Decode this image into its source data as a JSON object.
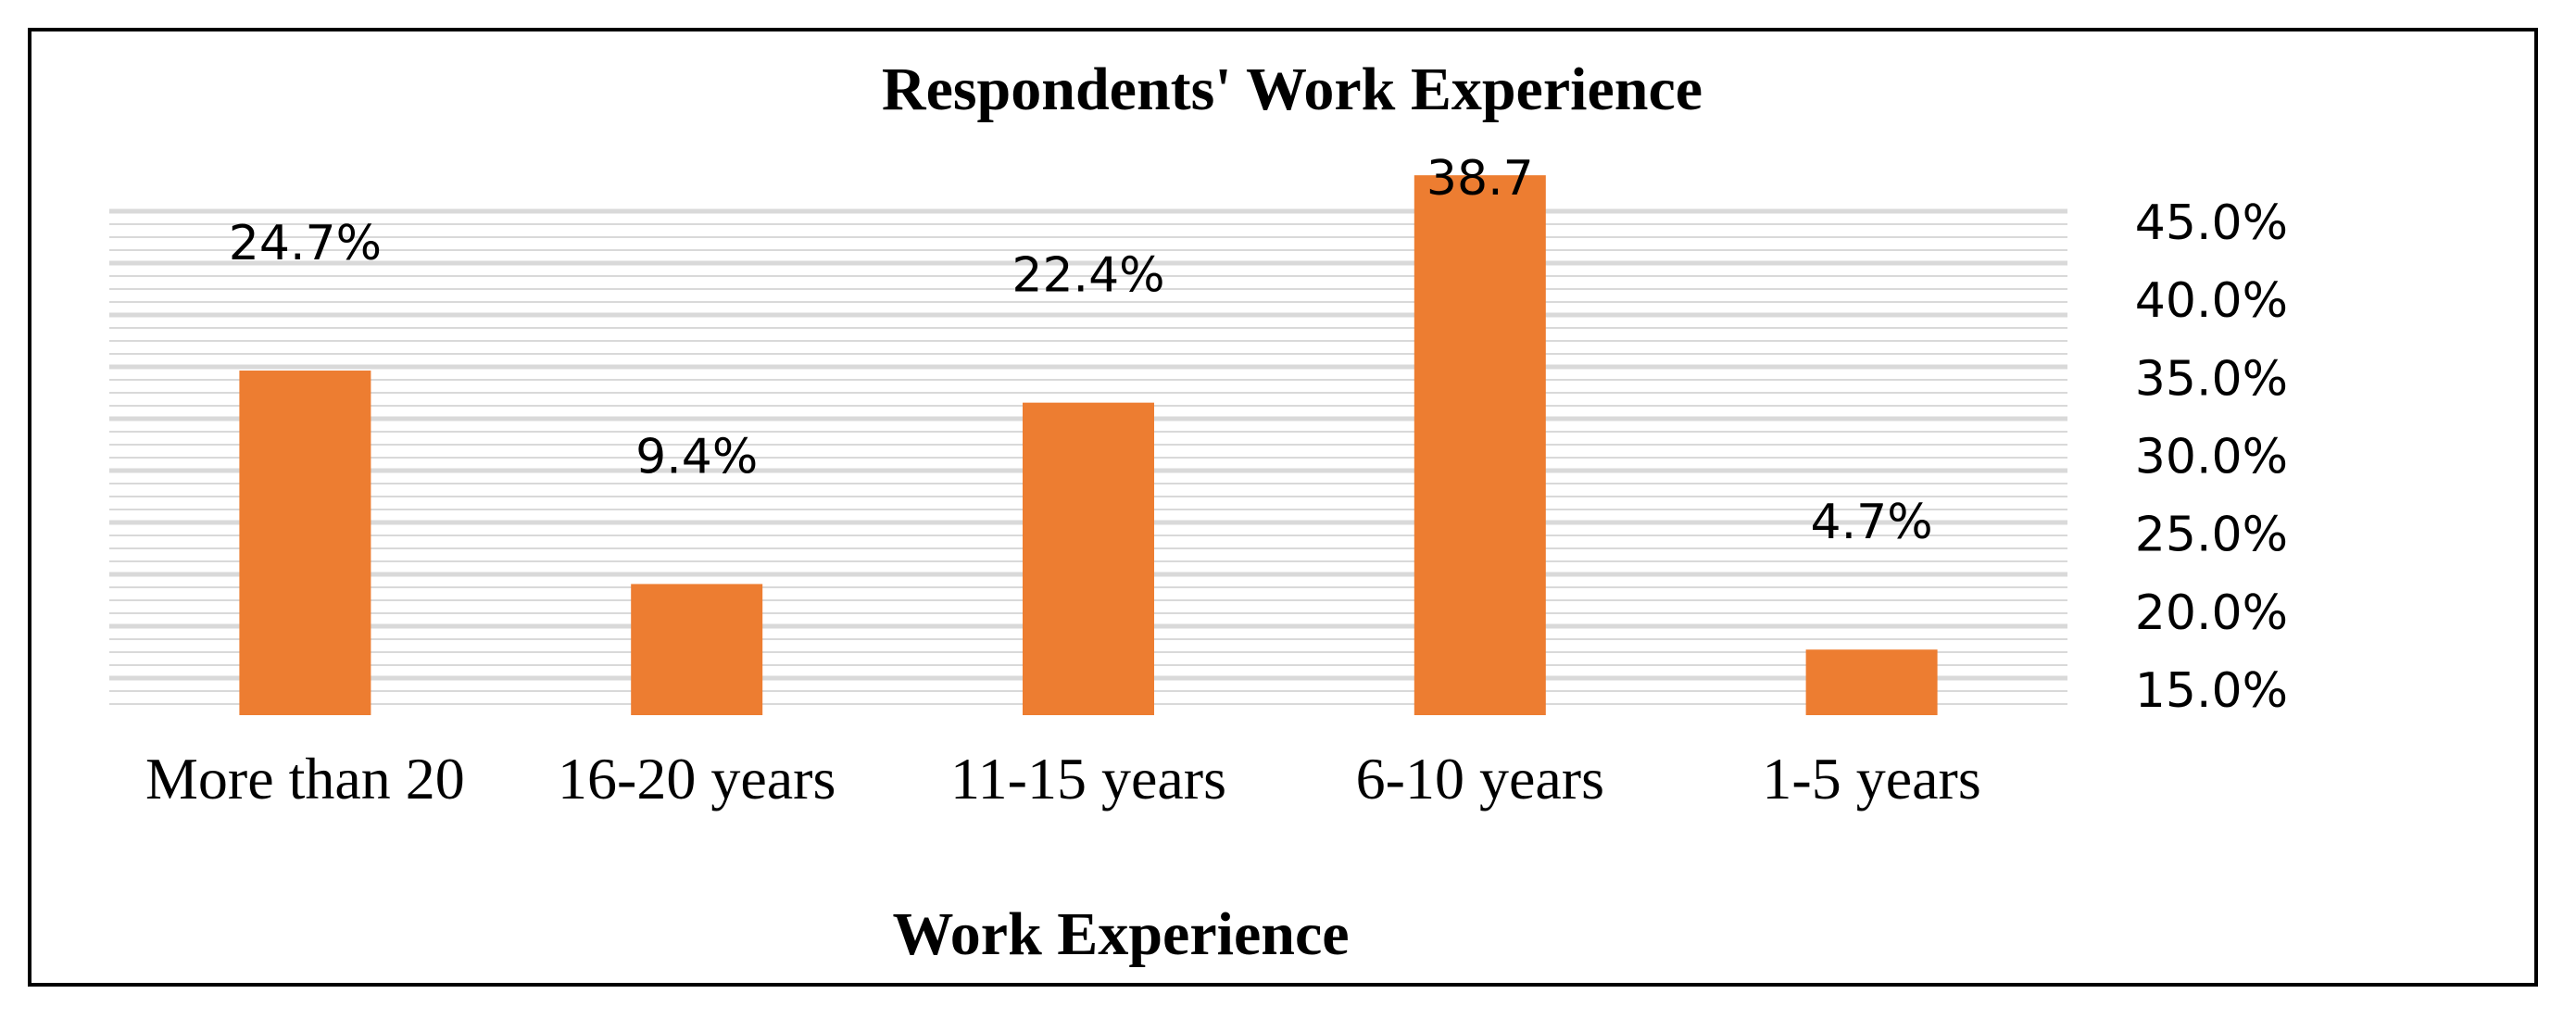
{
  "chart_data": {
    "type": "bar",
    "title": "Respondents' Work Experience",
    "xlabel": "Work Experience",
    "ylabel": "",
    "categories": [
      "More than 20",
      "16-20 years",
      "11-15 years",
      "6-10 years",
      "1-5 years"
    ],
    "values": [
      24.7,
      9.4,
      22.4,
      38.7,
      4.7
    ],
    "data_labels": [
      "24.7%",
      "9.4%",
      "22.4%",
      "38.7",
      "4.7%"
    ],
    "y_ticks": [
      "15.0%",
      "20.0%",
      "25.0%",
      "30.0%",
      "35.0%",
      "40.0%",
      "45.0%"
    ],
    "ylim": [
      0,
      45
    ],
    "y_axis_side": "right",
    "grid": true,
    "bar_color": "#ED7D31",
    "grid_color": "#D9D9D9"
  }
}
